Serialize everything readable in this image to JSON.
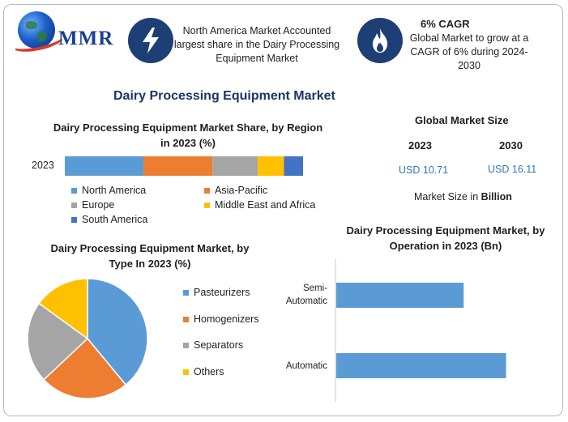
{
  "brand": {
    "name": "MMR"
  },
  "info": {
    "share_text": "North America Market Accounted largest share in the Dairy Processing Equipment Market",
    "cagr_title": "6% CAGR",
    "cagr_text": "Global Market to grow at a CAGR of 6% during 2024-2030",
    "icons": [
      "lightning-icon",
      "flame-icon"
    ]
  },
  "title": "Dairy Processing Equipment Market",
  "market_size": {
    "title": "Global Market Size",
    "year1": "2023",
    "year2": "2030",
    "value1": "USD 10.71",
    "value2": "USD 16.11",
    "note_prefix": "Market Size in ",
    "note_bold": "Billion"
  },
  "colors": {
    "navy": "#1e3f75",
    "north_america": "#5b9bd5",
    "asia_pacific": "#ed7d31",
    "europe": "#a5a5a5",
    "middle_east_africa": "#ffc000",
    "south_america": "#4472c4"
  },
  "chart_data": [
    {
      "type": "bar",
      "orientation": "horizontal-stacked",
      "title": "Dairy Processing Equipment Market Share, by Region in 2023 (%)",
      "categories": [
        "2023"
      ],
      "series": [
        {
          "name": "North America",
          "values": [
            33
          ],
          "color": "#5b9bd5"
        },
        {
          "name": "Asia-Pacific",
          "values": [
            29
          ],
          "color": "#ed7d31"
        },
        {
          "name": "Europe",
          "values": [
            19
          ],
          "color": "#a5a5a5"
        },
        {
          "name": "Middle East and Africa",
          "values": [
            11
          ],
          "color": "#ffc000"
        },
        {
          "name": "South America",
          "values": [
            8
          ],
          "color": "#4472c4"
        }
      ],
      "legend": "bottom"
    },
    {
      "type": "pie",
      "title": "Dairy Processing Equipment Market, by Type In 2023 (%)",
      "categories": [
        "Pasteurizers",
        "Homogenizers",
        "Separators",
        "Others"
      ],
      "values": [
        39,
        24,
        22,
        15
      ],
      "colors": [
        "#5b9bd5",
        "#ed7d31",
        "#a5a5a5",
        "#ffc000"
      ],
      "legend": "right"
    },
    {
      "type": "bar",
      "orientation": "horizontal",
      "title": "Dairy Processing Equipment Market, by Operation in 2023 (Bn)",
      "categories": [
        "Semi-Automatic",
        "Automatic"
      ],
      "category_lines": [
        [
          "Semi-",
          "Automatic"
        ],
        [
          "Automatic"
        ]
      ],
      "values": [
        3.9,
        5.2
      ],
      "color": "#5b9bd5",
      "xlim": [
        0,
        6.5
      ],
      "grid": false
    }
  ]
}
